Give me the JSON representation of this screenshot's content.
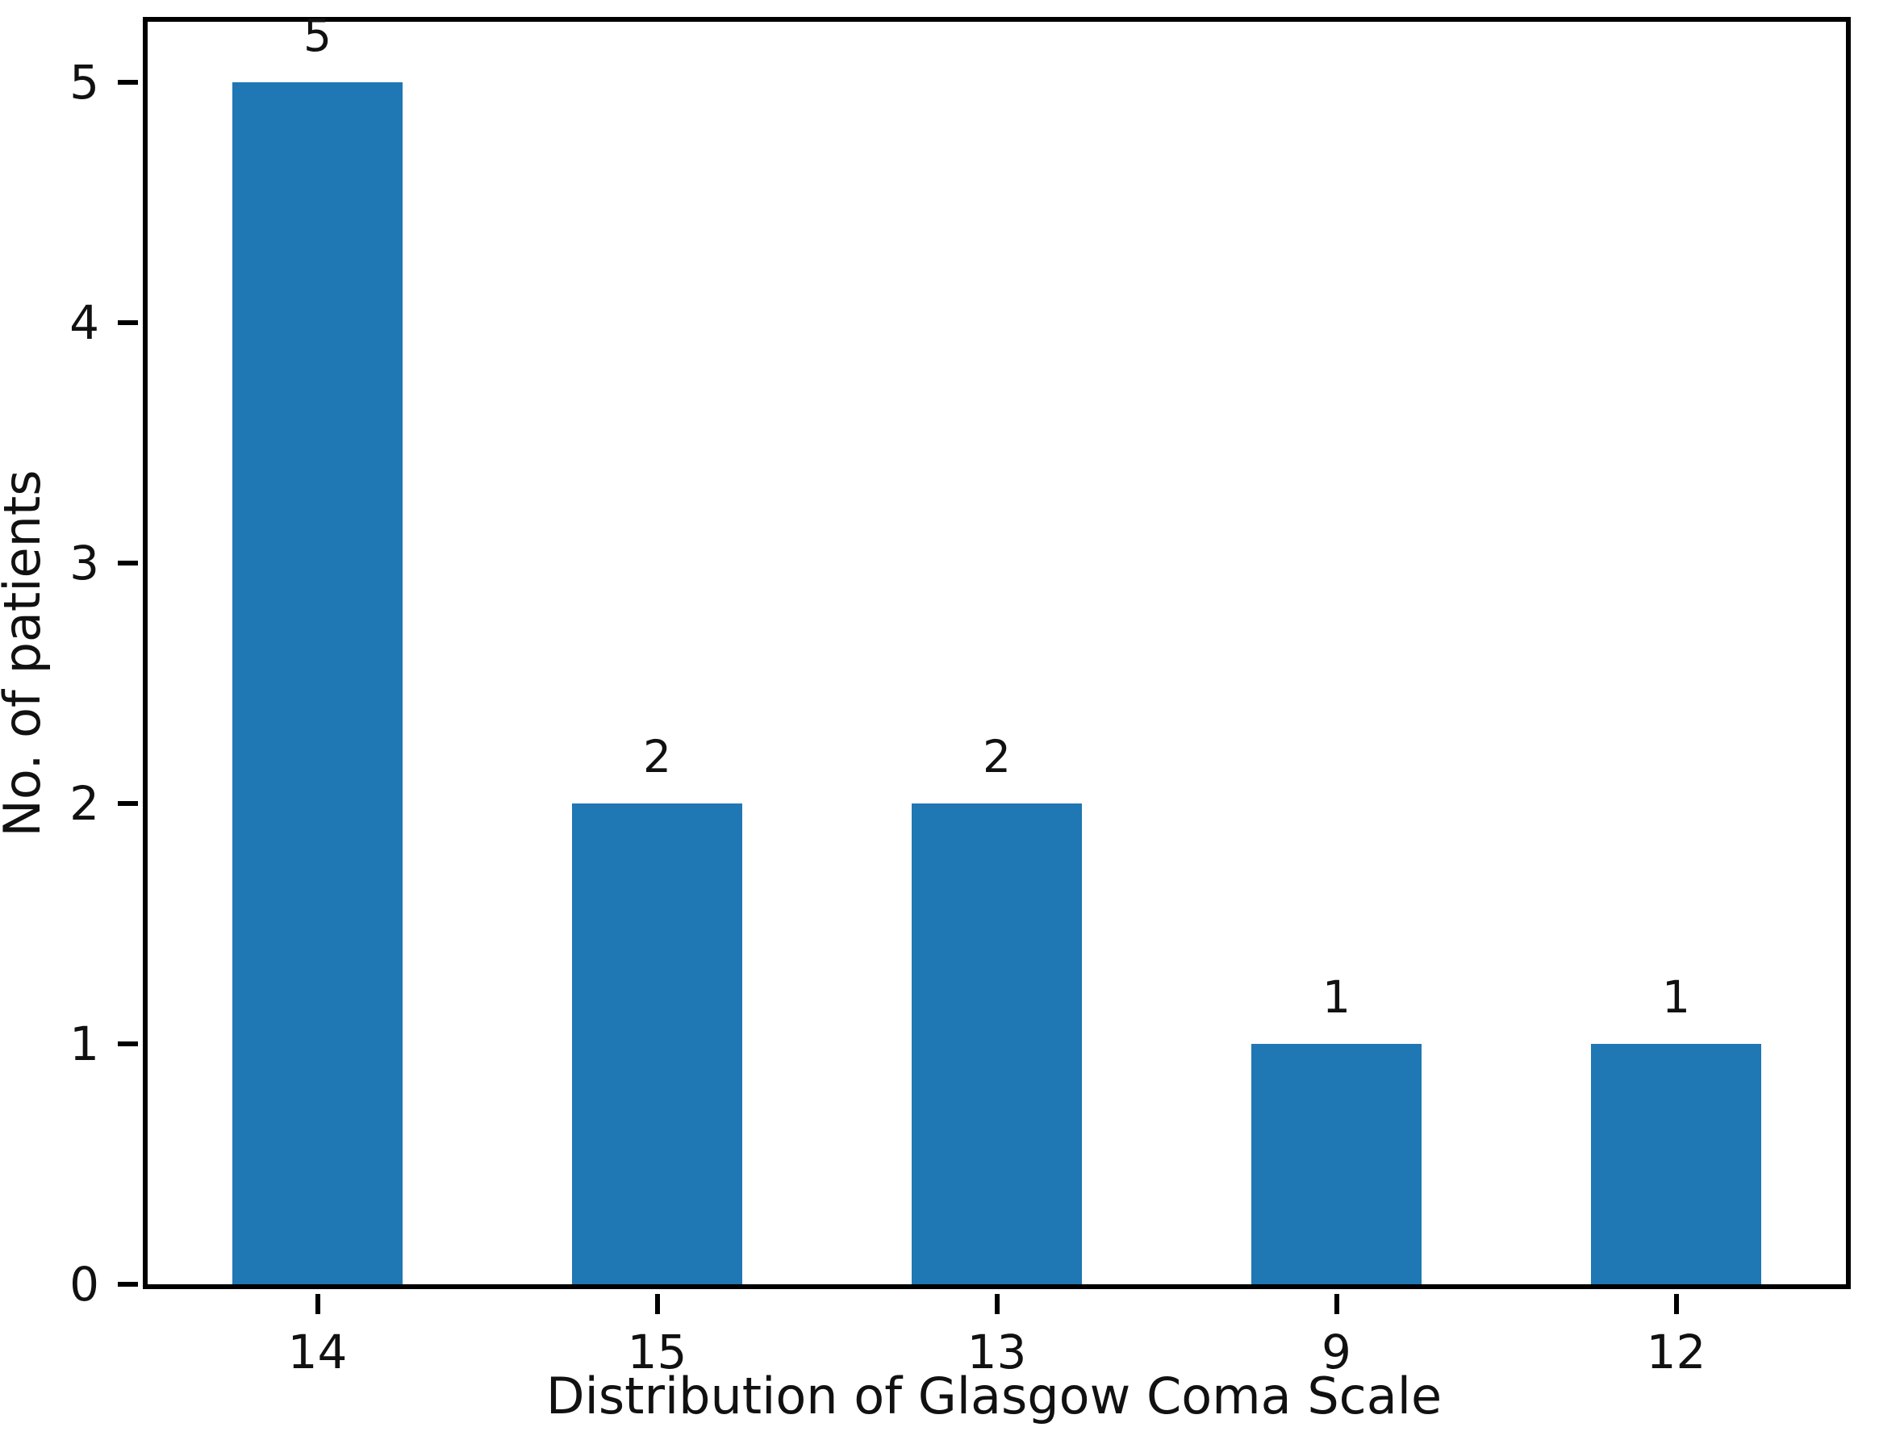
{
  "chart_data": {
    "type": "bar",
    "categories": [
      "14",
      "15",
      "13",
      "9",
      "12"
    ],
    "values": [
      5,
      2,
      2,
      1,
      1
    ],
    "bar_labels": [
      "5",
      "2",
      "2",
      "1",
      "1"
    ],
    "xlabel": "Distribution of Glasgow Coma Scale",
    "ylabel": "No. of patients",
    "yticks": [
      0,
      1,
      2,
      3,
      4,
      5
    ],
    "ylim": [
      0,
      5.25
    ],
    "bar_width_fraction": 0.5,
    "bar_color": "#1f77b4",
    "axis_color": "#000000",
    "text_color": "#111111",
    "grid": false,
    "legend_position": "none"
  }
}
